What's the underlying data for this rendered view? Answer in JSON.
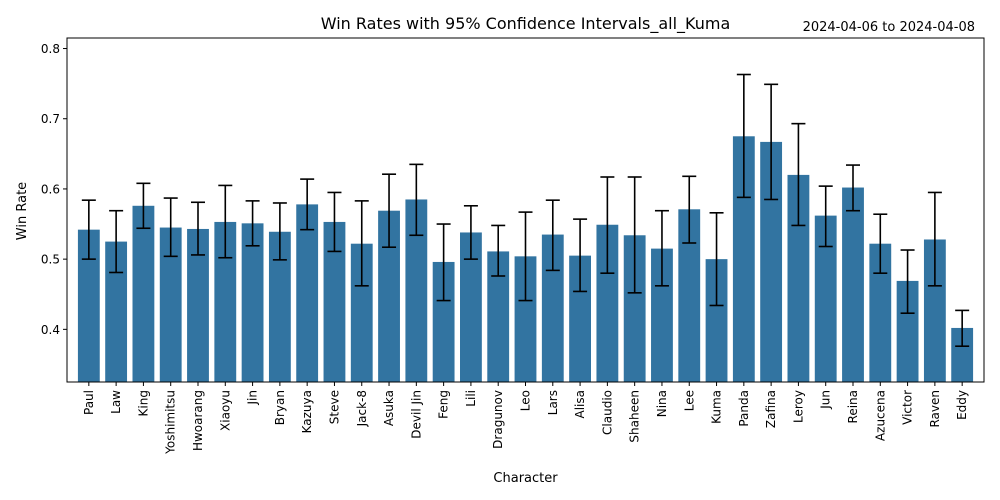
{
  "chart_data": {
    "type": "bar",
    "title": "Win Rates with 95% Confidence Intervals_all_Kuma",
    "date_range": "2024-04-06 to 2024-04-08",
    "xlabel": "Character",
    "ylabel": "Win Rate",
    "ylim": [
      0.325,
      0.815
    ],
    "yticks": [
      "0.4",
      "0.5",
      "0.6",
      "0.7",
      "0.8"
    ],
    "grid": false,
    "bar_color": "#3274a1",
    "categories": [
      "Paul",
      "Law",
      "King",
      "Yoshimitsu",
      "Hwoarang",
      "Xiaoyu",
      "Jin",
      "Bryan",
      "Kazuya",
      "Steve",
      "Jack-8",
      "Asuka",
      "Devil Jin",
      "Feng",
      "Lili",
      "Dragunov",
      "Leo",
      "Lars",
      "Alisa",
      "Claudio",
      "Shaheen",
      "Nina",
      "Lee",
      "Kuma",
      "Panda",
      "Zafina",
      "Leroy",
      "Jun",
      "Reina",
      "Azucena",
      "Victor",
      "Raven",
      "Eddy"
    ],
    "values": [
      0.542,
      0.525,
      0.576,
      0.545,
      0.543,
      0.553,
      0.551,
      0.539,
      0.578,
      0.553,
      0.522,
      0.569,
      0.585,
      0.496,
      0.538,
      0.511,
      0.504,
      0.535,
      0.505,
      0.549,
      0.534,
      0.515,
      0.571,
      0.5,
      0.675,
      0.667,
      0.62,
      0.562,
      0.602,
      0.522,
      0.469,
      0.528,
      0.402
    ],
    "ci_low": [
      0.5,
      0.481,
      0.544,
      0.504,
      0.506,
      0.502,
      0.519,
      0.499,
      0.542,
      0.511,
      0.462,
      0.517,
      0.534,
      0.441,
      0.5,
      0.476,
      0.441,
      0.484,
      0.454,
      0.48,
      0.452,
      0.462,
      0.523,
      0.434,
      0.588,
      0.585,
      0.548,
      0.518,
      0.569,
      0.48,
      0.423,
      0.462,
      0.376
    ],
    "ci_high": [
      0.584,
      0.569,
      0.608,
      0.587,
      0.581,
      0.605,
      0.583,
      0.58,
      0.614,
      0.595,
      0.583,
      0.621,
      0.635,
      0.55,
      0.576,
      0.548,
      0.567,
      0.584,
      0.557,
      0.617,
      0.617,
      0.569,
      0.618,
      0.566,
      0.763,
      0.749,
      0.693,
      0.604,
      0.634,
      0.564,
      0.513,
      0.595,
      0.427
    ]
  }
}
